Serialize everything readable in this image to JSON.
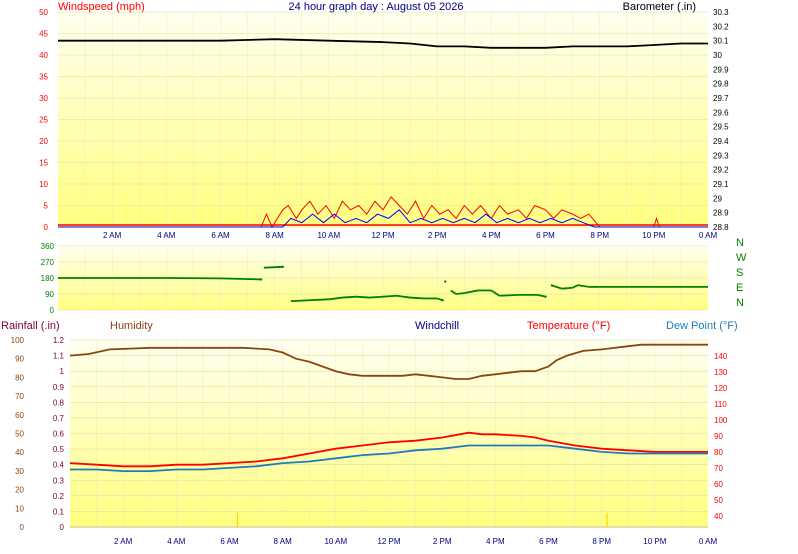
{
  "colors": {
    "wind_speed": "#ff0000",
    "wind_gust_avg": "#0000ff",
    "barometer": "#000000",
    "wind_direction": "#008000",
    "humidity": "#8b4513",
    "temperature": "#ff0000",
    "dew_point": "#1e7bbf",
    "rain": "#800040",
    "rain_marker": "#ffd700",
    "title": "#000080",
    "plot_top": "#fffff0",
    "plot_bottom": "#ffff80"
  },
  "chart_data": [
    {
      "type": "line",
      "title": "24 hour graph day : August 05 2026",
      "left_axis_label": "Windspeed (mph)",
      "right_axis_label": "Barometer (.in)",
      "x_ticks": [
        "2 AM",
        "4 AM",
        "6 AM",
        "8 AM",
        "10 AM",
        "12 PM",
        "2 PM",
        "4 PM",
        "6 PM",
        "8 PM",
        "10 PM",
        "0 AM"
      ],
      "left_ticks": [
        "50",
        "45",
        "40",
        "35",
        "30",
        "25",
        "20",
        "15",
        "10",
        "5",
        "0"
      ],
      "right_ticks": [
        "30.3",
        "30.2",
        "30.1",
        "30",
        "29.9",
        "29.8",
        "29.7",
        "29.6",
        "29.5",
        "29.4",
        "29.3",
        "29.2",
        "29.1",
        "29",
        "28.9",
        "28.8"
      ],
      "ylim_left": [
        0,
        50
      ],
      "ylim_right": [
        28.8,
        30.3
      ],
      "grid": true,
      "series": [
        {
          "key": "barometer",
          "axis": "right",
          "points": [
            [
              0,
              30.1
            ],
            [
              2,
              30.1
            ],
            [
              4,
              30.1
            ],
            [
              6,
              30.1
            ],
            [
              8,
              30.11
            ],
            [
              10,
              30.1
            ],
            [
              12,
              30.09
            ],
            [
              13,
              30.08
            ],
            [
              14,
              30.06
            ],
            [
              15,
              30.06
            ],
            [
              16,
              30.05
            ],
            [
              17,
              30.05
            ],
            [
              18,
              30.05
            ],
            [
              19,
              30.06
            ],
            [
              20,
              30.06
            ],
            [
              21,
              30.06
            ],
            [
              22,
              30.07
            ],
            [
              23,
              30.08
            ],
            [
              24,
              30.08
            ]
          ]
        },
        {
          "key": "wind_speed",
          "axis": "left",
          "points": [
            [
              0,
              0
            ],
            [
              7.5,
              0
            ],
            [
              7.7,
              3
            ],
            [
              7.9,
              0
            ],
            [
              8.3,
              4
            ],
            [
              8.5,
              5
            ],
            [
              8.8,
              2
            ],
            [
              9.0,
              4
            ],
            [
              9.3,
              6
            ],
            [
              9.6,
              3
            ],
            [
              9.9,
              5
            ],
            [
              10.2,
              2
            ],
            [
              10.5,
              6
            ],
            [
              10.8,
              4
            ],
            [
              11.1,
              5
            ],
            [
              11.4,
              3
            ],
            [
              11.7,
              6
            ],
            [
              12.0,
              4
            ],
            [
              12.3,
              7
            ],
            [
              12.6,
              5
            ],
            [
              12.9,
              3
            ],
            [
              13.2,
              6
            ],
            [
              13.5,
              2
            ],
            [
              13.8,
              5
            ],
            [
              14.1,
              3
            ],
            [
              14.4,
              4
            ],
            [
              14.7,
              2
            ],
            [
              15.0,
              5
            ],
            [
              15.3,
              3
            ],
            [
              15.6,
              5
            ],
            [
              16.0,
              2
            ],
            [
              16.3,
              5
            ],
            [
              16.6,
              3
            ],
            [
              17.0,
              4
            ],
            [
              17.3,
              2
            ],
            [
              17.6,
              5
            ],
            [
              18.0,
              4
            ],
            [
              18.3,
              2
            ],
            [
              18.6,
              4
            ],
            [
              19.0,
              3
            ],
            [
              19.3,
              2
            ],
            [
              19.6,
              3
            ],
            [
              20.0,
              0
            ],
            [
              22.0,
              0
            ],
            [
              22.1,
              2
            ],
            [
              22.2,
              0
            ],
            [
              24,
              0
            ]
          ]
        },
        {
          "key": "wind_gust_avg",
          "axis": "left",
          "points": [
            [
              0,
              0
            ],
            [
              8.3,
              0
            ],
            [
              8.6,
              2
            ],
            [
              9.0,
              1
            ],
            [
              9.4,
              3
            ],
            [
              9.8,
              1
            ],
            [
              10.2,
              3
            ],
            [
              10.6,
              1
            ],
            [
              11.0,
              2
            ],
            [
              11.4,
              1
            ],
            [
              11.8,
              3
            ],
            [
              12.2,
              2
            ],
            [
              12.6,
              4
            ],
            [
              13.0,
              1
            ],
            [
              13.4,
              2
            ],
            [
              13.8,
              1
            ],
            [
              14.2,
              2
            ],
            [
              14.6,
              1
            ],
            [
              15.0,
              2
            ],
            [
              15.4,
              1
            ],
            [
              15.8,
              3
            ],
            [
              16.2,
              1
            ],
            [
              16.6,
              2
            ],
            [
              17.0,
              1
            ],
            [
              17.4,
              2
            ],
            [
              17.8,
              1
            ],
            [
              18.2,
              2
            ],
            [
              18.6,
              1
            ],
            [
              19.0,
              2
            ],
            [
              19.4,
              1
            ],
            [
              19.8,
              0
            ],
            [
              24,
              0
            ]
          ]
        }
      ]
    },
    {
      "type": "scatter",
      "left_ticks": [
        "360",
        "270",
        "180",
        "90",
        "0"
      ],
      "right_labels": [
        "N",
        "W",
        "S",
        "E",
        "N"
      ],
      "ylim": [
        0,
        360
      ],
      "grid": true,
      "series": [
        {
          "key": "wind_direction",
          "points": [
            [
              0,
              180
            ],
            [
              2,
              180
            ],
            [
              4,
              180
            ],
            [
              6,
              178
            ],
            [
              7.5,
              172
            ],
            [
              7.6,
              238
            ],
            [
              8.3,
              243
            ],
            [
              8.6,
              50
            ],
            [
              10,
              60
            ],
            [
              10.5,
              70
            ],
            [
              11,
              75
            ],
            [
              11.5,
              70
            ],
            [
              12,
              75
            ],
            [
              12.5,
              80
            ],
            [
              13,
              70
            ],
            [
              13.5,
              65
            ],
            [
              14,
              65
            ],
            [
              14.2,
              55
            ],
            [
              14.3,
              160
            ],
            [
              14.5,
              110
            ],
            [
              14.7,
              90
            ],
            [
              15,
              95
            ],
            [
              15.5,
              110
            ],
            [
              16,
              110
            ],
            [
              16.3,
              80
            ],
            [
              17,
              85
            ],
            [
              17.7,
              85
            ],
            [
              18,
              75
            ],
            [
              18.2,
              140
            ],
            [
              18.6,
              120
            ],
            [
              19,
              125
            ],
            [
              19.2,
              140
            ],
            [
              19.6,
              130
            ],
            [
              20,
              130
            ],
            [
              22,
              130
            ],
            [
              24,
              130
            ]
          ]
        }
      ]
    },
    {
      "type": "line",
      "left_axis_label": "Rainfall (.in)",
      "series_labels": [
        "Humidity",
        "Windchill",
        "Temperature (°F)",
        "Dew Point (°F)"
      ],
      "x_ticks": [
        "2 AM",
        "4 AM",
        "6 AM",
        "8 AM",
        "10 AM",
        "12 PM",
        "2 PM",
        "4 PM",
        "6 PM",
        "8 PM",
        "10 PM",
        "0 AM"
      ],
      "left_ticks": [
        "1.2",
        "1.1",
        "1",
        "0.9",
        "0.8",
        "0.7",
        "0.6",
        "0.5",
        "0.4",
        "0.3",
        "0.2",
        "0.1",
        "0"
      ],
      "humidity_ticks": [
        "100",
        "90",
        "80",
        "70",
        "60",
        "50",
        "40",
        "30",
        "20",
        "10",
        "0"
      ],
      "right_ticks": [
        "140",
        "130",
        "120",
        "110",
        "100",
        "90",
        "80",
        "70",
        "60",
        "50",
        "40"
      ],
      "ylim_left": [
        0,
        1.2
      ],
      "ylim_right": [
        33,
        150
      ],
      "grid": true,
      "series": [
        {
          "key": "humidity",
          "axis": "left",
          "points": [
            [
              0,
              1.1
            ],
            [
              0.7,
              1.11
            ],
            [
              1.5,
              1.14
            ],
            [
              3,
              1.15
            ],
            [
              5,
              1.15
            ],
            [
              6.5,
              1.15
            ],
            [
              7.5,
              1.14
            ],
            [
              8.0,
              1.12
            ],
            [
              8.5,
              1.08
            ],
            [
              9.0,
              1.06
            ],
            [
              9.5,
              1.03
            ],
            [
              10.0,
              1.0
            ],
            [
              10.5,
              0.98
            ],
            [
              11.0,
              0.97
            ],
            [
              11.5,
              0.97
            ],
            [
              12.5,
              0.97
            ],
            [
              13.0,
              0.98
            ],
            [
              13.5,
              0.97
            ],
            [
              14.0,
              0.96
            ],
            [
              14.5,
              0.95
            ],
            [
              15.0,
              0.95
            ],
            [
              15.5,
              0.97
            ],
            [
              16.0,
              0.98
            ],
            [
              16.5,
              0.99
            ],
            [
              17.0,
              1.0
            ],
            [
              17.5,
              1.0
            ],
            [
              18.0,
              1.03
            ],
            [
              18.3,
              1.07
            ],
            [
              18.7,
              1.1
            ],
            [
              19.3,
              1.13
            ],
            [
              20.0,
              1.14
            ],
            [
              21.0,
              1.16
            ],
            [
              21.5,
              1.17
            ],
            [
              24,
              1.17
            ]
          ]
        },
        {
          "key": "temperature",
          "axis": "right",
          "points": [
            [
              0,
              73
            ],
            [
              1,
              72
            ],
            [
              2,
              71
            ],
            [
              3,
              71
            ],
            [
              4,
              72
            ],
            [
              5,
              72
            ],
            [
              6,
              73
            ],
            [
              7,
              74
            ],
            [
              8,
              76
            ],
            [
              9,
              79
            ],
            [
              10,
              82
            ],
            [
              11,
              84
            ],
            [
              12,
              86
            ],
            [
              13,
              87
            ],
            [
              14,
              89
            ],
            [
              15,
              92
            ],
            [
              15.5,
              91
            ],
            [
              16,
              91
            ],
            [
              17,
              90
            ],
            [
              17.5,
              89
            ],
            [
              18,
              87
            ],
            [
              19,
              84
            ],
            [
              20,
              82
            ],
            [
              21,
              81
            ],
            [
              22,
              80
            ],
            [
              23,
              80
            ],
            [
              24,
              80
            ]
          ]
        },
        {
          "key": "dew_point",
          "axis": "right",
          "points": [
            [
              0,
              69
            ],
            [
              1,
              69
            ],
            [
              2,
              68
            ],
            [
              3,
              68
            ],
            [
              4,
              69
            ],
            [
              5,
              69
            ],
            [
              6,
              70
            ],
            [
              7,
              71
            ],
            [
              8,
              73
            ],
            [
              9,
              74
            ],
            [
              10,
              76
            ],
            [
              11,
              78
            ],
            [
              12,
              79
            ],
            [
              13,
              81
            ],
            [
              14,
              82
            ],
            [
              15,
              84
            ],
            [
              16,
              84
            ],
            [
              17,
              84
            ],
            [
              18,
              84
            ],
            [
              19,
              82
            ],
            [
              20,
              80
            ],
            [
              21,
              79
            ],
            [
              22,
              79
            ],
            [
              23,
              79
            ],
            [
              24,
              79
            ]
          ]
        }
      ],
      "rain_markers": [
        6.3,
        20.2
      ]
    }
  ]
}
